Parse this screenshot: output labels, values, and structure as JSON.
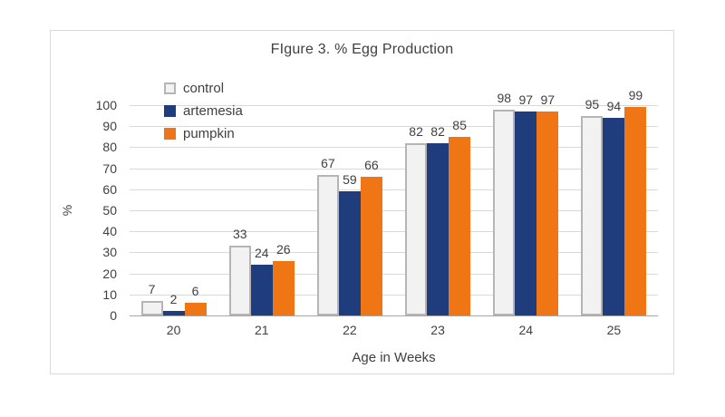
{
  "chart_data": {
    "type": "bar",
    "title": "FIgure 3. % Egg Production",
    "xlabel": "Age in Weeks",
    "ylabel": "%",
    "categories": [
      "20",
      "21",
      "22",
      "23",
      "24",
      "25"
    ],
    "series": [
      {
        "name": "control",
        "values": [
          7,
          33,
          67,
          82,
          98,
          95
        ],
        "fill": "#F2F2F2",
        "border": "#B5B5B5"
      },
      {
        "name": "artemesia",
        "values": [
          2,
          24,
          59,
          82,
          97,
          94
        ],
        "fill": "#1F3D7C",
        "border": "#1F3D7C"
      },
      {
        "name": "pumpkin",
        "values": [
          6,
          26,
          66,
          85,
          97,
          99
        ],
        "fill": "#F07514",
        "border": "#F07514"
      }
    ],
    "ylim": [
      0,
      100
    ],
    "ytick_step": 10,
    "grid": true,
    "legend_position": "top-left-inside",
    "data_labels": "outside-end"
  },
  "colors": {
    "gridline": "#D9D9D9",
    "axis_line": "#A6A6A6",
    "frame_border": "#D9D9D9",
    "text": "#404040",
    "background": "#FFFFFF"
  }
}
